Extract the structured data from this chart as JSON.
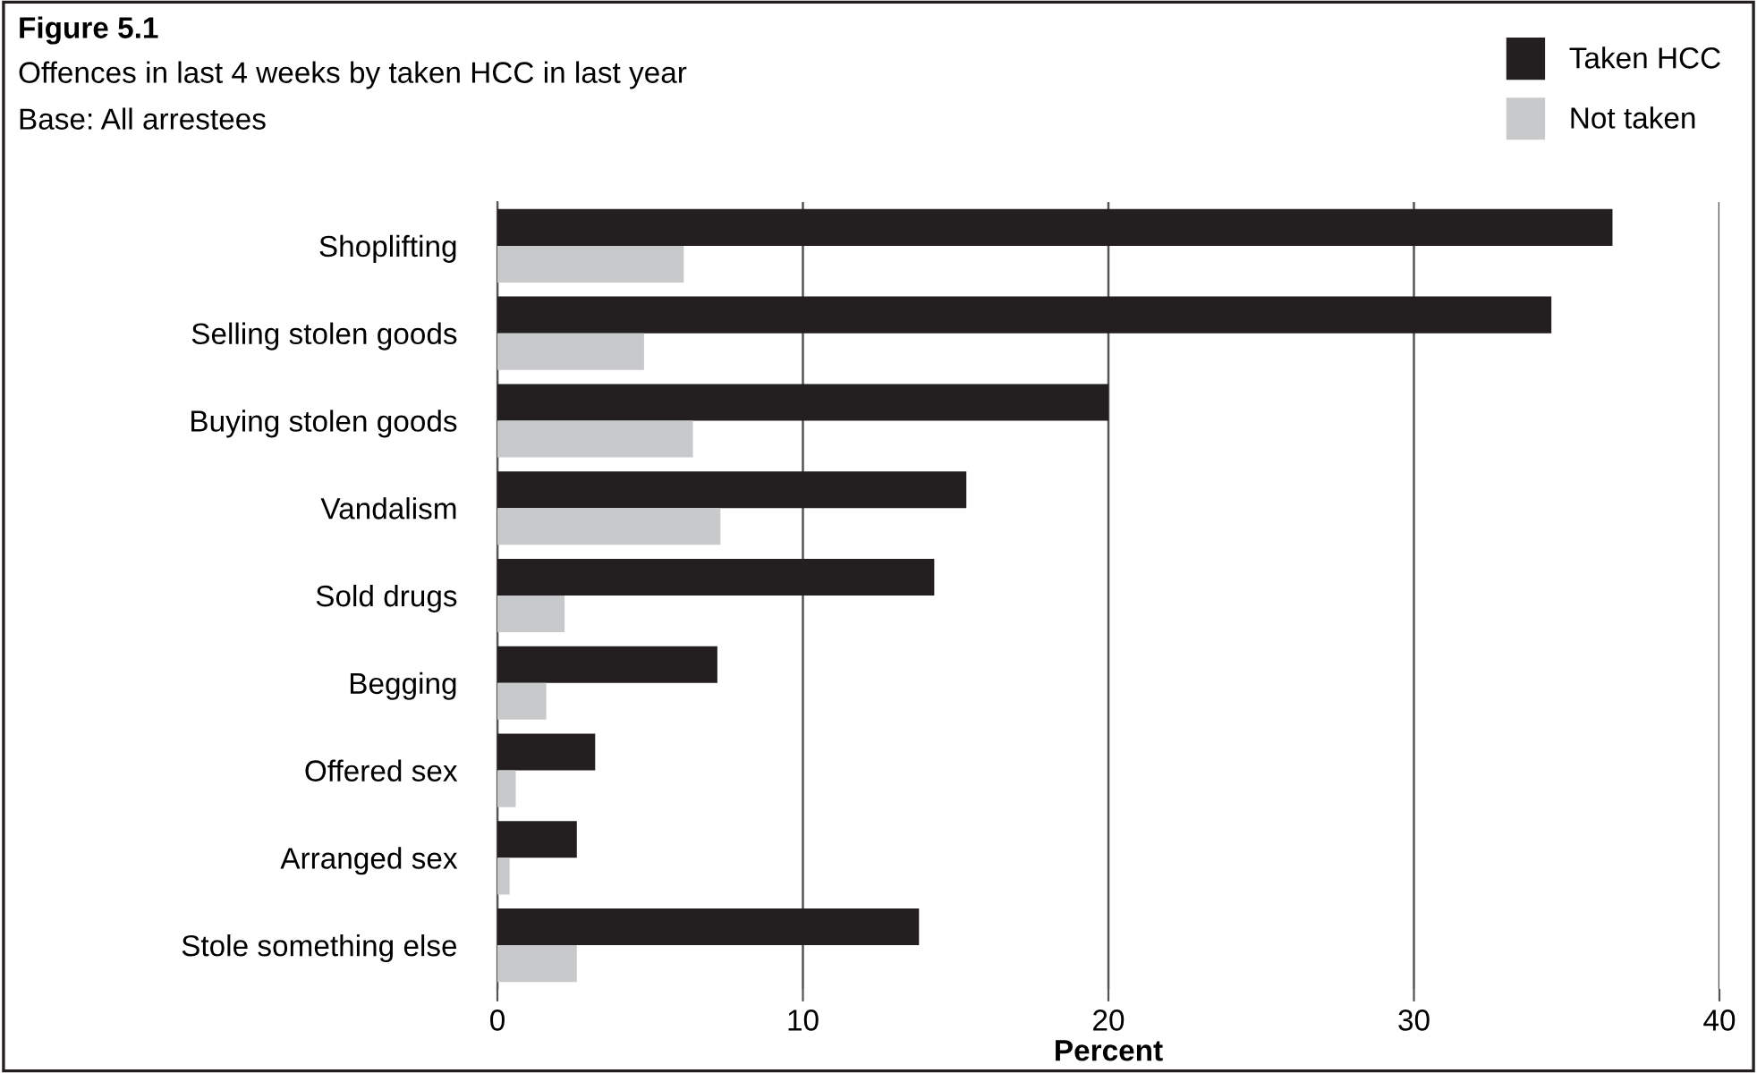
{
  "chart_data": {
    "type": "bar",
    "orientation": "horizontal",
    "title": "Figure 5.1",
    "subtitle": "Offences in last 4 weeks by taken HCC in last year",
    "annotations": [
      "Base: All arrestees"
    ],
    "xlabel": "Percent",
    "categories": [
      "Shoplifting",
      "Selling stolen goods",
      "Buying stolen goods",
      "Vandalism",
      "Sold drugs",
      "Begging",
      "Offered sex",
      "Arranged sex",
      "Stole something else"
    ],
    "series": [
      {
        "name": "Taken HCC",
        "color": "#231f20",
        "values": [
          36.5,
          34.5,
          20.0,
          15.35,
          14.3,
          7.2,
          3.2,
          2.6,
          13.8
        ]
      },
      {
        "name": "Not taken",
        "color": "#c8c9cb",
        "values": [
          6.1,
          4.8,
          6.4,
          7.3,
          2.2,
          1.6,
          0.6,
          0.4,
          2.6
        ]
      }
    ],
    "xlim": [
      0,
      40
    ],
    "xticks": [
      0,
      10,
      20,
      30,
      40
    ],
    "grid": "x",
    "legend": "top right"
  }
}
